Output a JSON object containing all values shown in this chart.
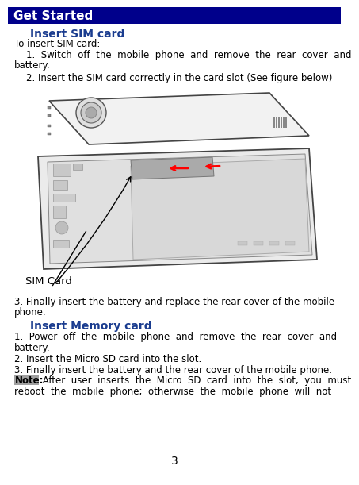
{
  "title": "Get Started",
  "title_bg": "#00008B",
  "title_color": "#FFFFFF",
  "title_fontsize": 11,
  "section1_header": "Insert SIM card",
  "section1_header_color": "#1a3c8f",
  "section1_header_fontsize": 10,
  "intro_text": "To insert SIM card:",
  "step1_line1": "    1.  Switch  off  the  mobile  phone  and  remove  the  rear  cover  and",
  "step1_line2": "battery.",
  "step2_text": "    2. Insert the SIM card correctly in the card slot (See figure below)",
  "step3_line1": "3. Finally insert the battery and replace the rear cover of the mobile",
  "step3_line2": "phone.",
  "section2_header": "Insert Memory card",
  "section2_header_color": "#1a3c8f",
  "section2_header_fontsize": 10,
  "mem_step1_line1": "1.  Power  off  the  mobile  phone  and  remove  the  rear  cover  and",
  "mem_step1_line2": "battery.",
  "mem_step2": "2. Insert the Micro SD card into the slot.",
  "mem_step3": "3. Finally insert the battery and the rear cover of the mobile phone.",
  "note_label": "Note:",
  "note_label_bg": "#A0A0A0",
  "note_line1": " After  user  inserts  the  Micro  SD  card  into  the  slot,  you  must",
  "note_line2": "reboot  the  mobile  phone;  otherwise  the  mobile  phone  will  not",
  "page_number": "3",
  "body_fontsize": 8.5,
  "body_color": "#000000",
  "sim_card_label": "SIM Card",
  "background_color": "#FFFFFF"
}
